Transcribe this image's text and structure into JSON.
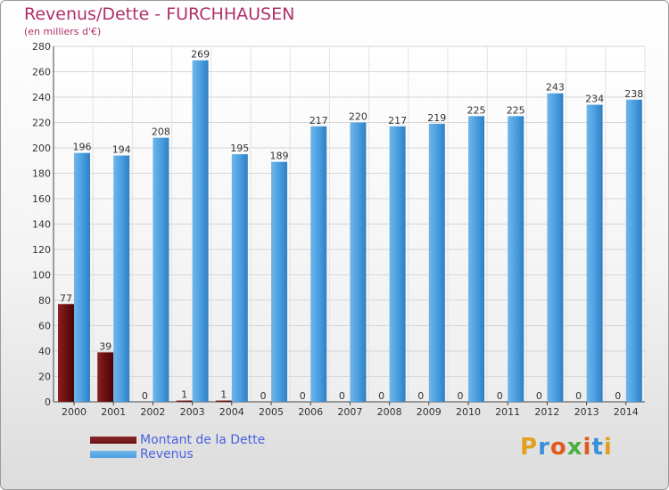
{
  "title": "Revenus/Dette - FURCHHAUSEN",
  "subtitle": "(en milliers d'€)",
  "logo": {
    "text": "Proxiti",
    "colors": [
      "#e0a020",
      "#3a8fd8",
      "#e05a20",
      "#4ab040",
      "#e05a20",
      "#3a8fd8",
      "#e0a020"
    ]
  },
  "colors": {
    "dette": "#6b0f10",
    "revenus": "#4b9fe0",
    "title": "#b0306a"
  },
  "chart_data": {
    "type": "bar",
    "title": "Revenus/Dette - FURCHHAUSEN",
    "ylabel": "(en milliers d'€)",
    "xlabel": "",
    "categories": [
      "2000",
      "2001",
      "2002",
      "2003",
      "2004",
      "2005",
      "2006",
      "2007",
      "2008",
      "2009",
      "2010",
      "2011",
      "2012",
      "2013",
      "2014"
    ],
    "series": [
      {
        "name": "Montant de la Dette",
        "values": [
          77,
          39,
          0,
          1,
          1,
          0,
          0,
          0,
          0,
          0,
          0,
          0,
          0,
          0,
          0
        ]
      },
      {
        "name": "Revenus",
        "values": [
          196,
          194,
          208,
          269,
          195,
          189,
          217,
          220,
          217,
          219,
          225,
          225,
          243,
          234,
          238
        ]
      }
    ],
    "ylim": [
      0,
      280
    ],
    "yticks": [
      0,
      20,
      40,
      60,
      80,
      100,
      120,
      140,
      160,
      180,
      200,
      220,
      240,
      260,
      280
    ],
    "grid": true,
    "legend": "bottom-left"
  }
}
